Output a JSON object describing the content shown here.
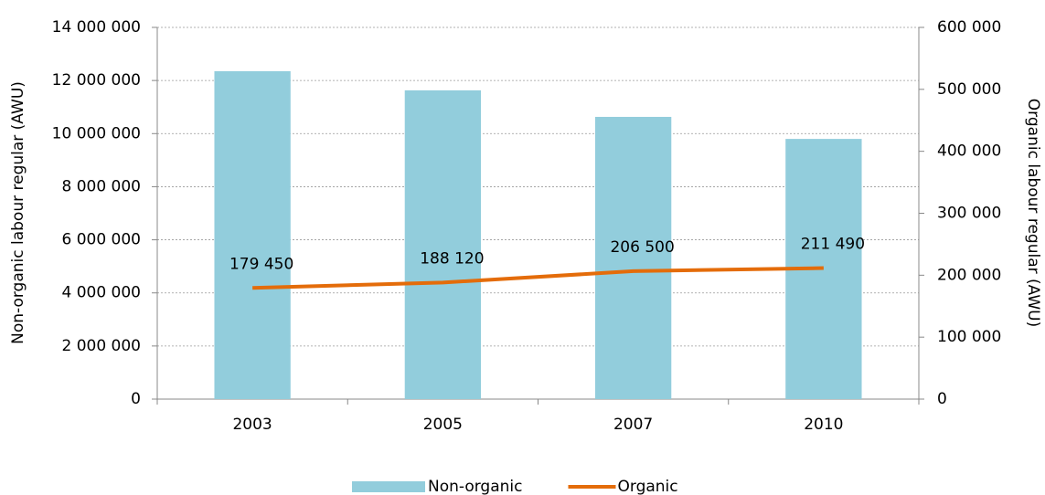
{
  "chart_data": {
    "type": "bar",
    "categories": [
      "2003",
      "2005",
      "2007",
      "2010"
    ],
    "series": [
      {
        "name": "Non-organic",
        "type": "bar",
        "color": "#92cddc",
        "values": [
          12350000,
          11630000,
          10630000,
          9800000
        ]
      },
      {
        "name": "Organic",
        "type": "line",
        "axis": "y2",
        "color": "#e46c0a",
        "values": [
          179450,
          188120,
          206500,
          211490
        ],
        "value_labels": [
          "179 450",
          "188 120",
          "206 500",
          "211 490"
        ]
      }
    ],
    "ylabel": "Non-organic  labour regular  (AWU)",
    "y2label": "Organic labour regular (AWU)",
    "ylim": [
      0,
      14000000
    ],
    "yticks": [
      0,
      {
        "value": 2000000,
        "label": "2 000 000"
      },
      {
        "value": 4000000,
        "label": "4 000 000"
      },
      {
        "value": 6000000,
        "label": "6 000 000"
      },
      {
        "value": 8000000,
        "label": "8 000 000"
      },
      {
        "value": 10000000,
        "label": "10 000 000"
      },
      {
        "value": 12000000,
        "label": "12 000 000"
      },
      {
        "value": 14000000,
        "label": "14 000 000"
      }
    ],
    "y2lim": [
      0,
      600000
    ],
    "y2ticks": [
      0,
      {
        "value": 100000,
        "label": "100 000"
      },
      {
        "value": 200000,
        "label": "200 000"
      },
      {
        "value": 300000,
        "label": "300 000"
      },
      {
        "value": 400000,
        "label": "400 000"
      },
      {
        "value": 500000,
        "label": "500 000"
      },
      {
        "value": 600000,
        "label": "600 000"
      }
    ],
    "grid": true,
    "legend": "bottom"
  }
}
